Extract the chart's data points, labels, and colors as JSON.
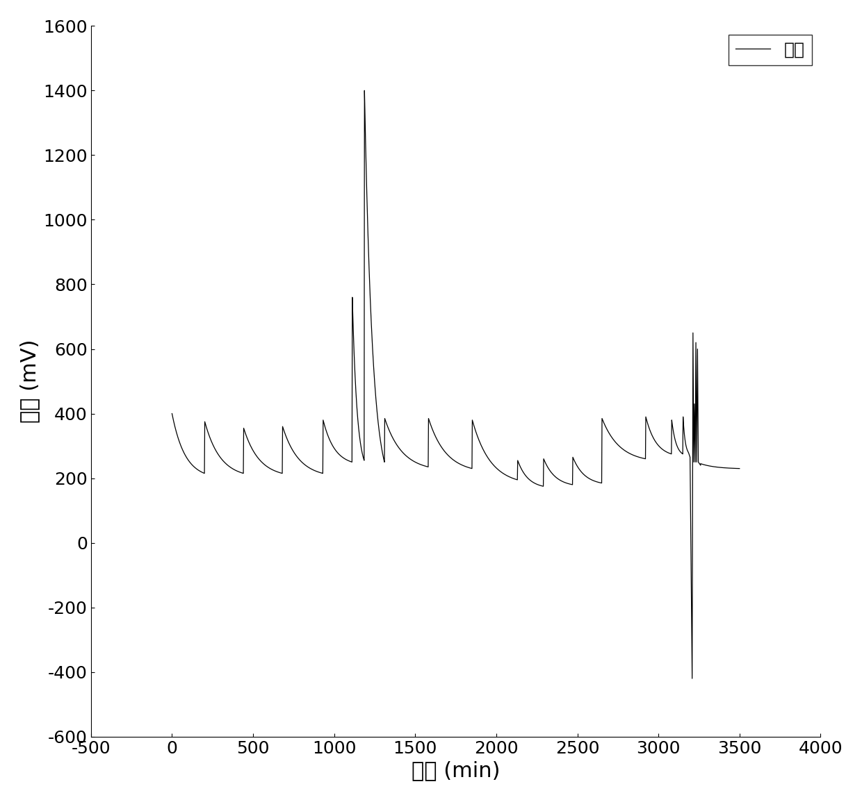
{
  "title": "",
  "xlabel": "时间 (min)",
  "ylabel": "电压 (mV)",
  "legend_label": "电压",
  "xlim": [
    -500,
    4000
  ],
  "ylim": [
    -600,
    1600
  ],
  "xticks": [
    -500,
    0,
    500,
    1000,
    1500,
    2000,
    2500,
    3000,
    3500,
    4000
  ],
  "yticks": [
    -600,
    -400,
    -200,
    0,
    200,
    400,
    600,
    800,
    1000,
    1200,
    1400,
    1600
  ],
  "line_color": "#000000",
  "background_color": "#ffffff",
  "xlabel_fontsize": 22,
  "ylabel_fontsize": 22,
  "tick_fontsize": 18,
  "legend_fontsize": 18,
  "linewidth": 0.9
}
